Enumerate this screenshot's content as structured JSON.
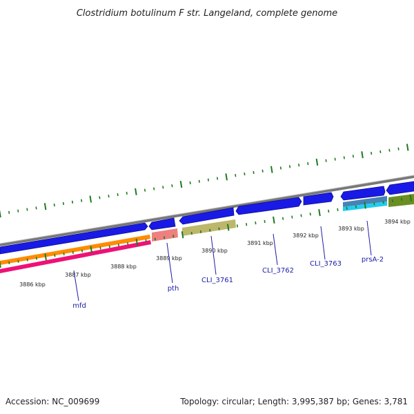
{
  "title": "Clostridium botulinum F str. Langeland, complete genome",
  "footer": {
    "accession": "Accession: NC_009699",
    "summary": "Topology: circular; Length: 3,995,387 bp; Genes: 3,781"
  },
  "colors": {
    "backbone": "#888888",
    "tick": "#1e7a1e",
    "gene_blue": "#1a1ae6",
    "gene_label": "#1a1aa6",
    "orange": "#ff8c00",
    "pink": "#ee1177",
    "salmon": "#ee8080",
    "khaki": "#bdb76b",
    "steel": "#4682b4",
    "cyan": "#22ccee",
    "olive": "#6b8e23"
  },
  "scale_labels": [
    "3886 kbp",
    "3887 kbp",
    "3888 kbp",
    "3889 kbp",
    "3890 kbp",
    "3891 kbp",
    "3892 kbp",
    "3893 kbp",
    "3894 kbp"
  ],
  "gene_labels": [
    "mfd",
    "pth",
    "CLI_3761",
    "CLI_3762",
    "CLI_3763",
    "prsA-2"
  ]
}
